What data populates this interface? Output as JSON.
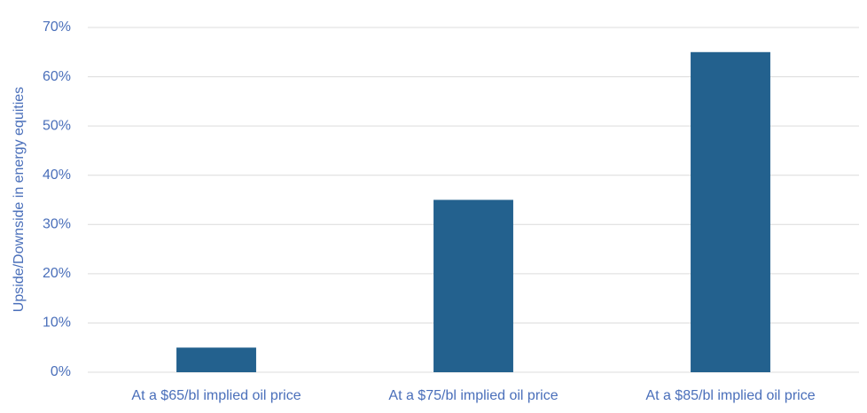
{
  "chart_data": {
    "type": "bar",
    "y_axis_label": "Upside/Downside in energy equities",
    "categories": [
      "At a $65/bl implied oil price",
      "At a $75/bl implied oil price",
      "At a $85/bl implied oil price"
    ],
    "values": [
      5,
      35,
      65
    ],
    "color": "#23618e",
    "ylim": [
      0,
      70
    ],
    "yticks": [
      {
        "value": 0,
        "label": "0%"
      },
      {
        "value": 10,
        "label": "10%"
      },
      {
        "value": 20,
        "label": "20%"
      },
      {
        "value": 30,
        "label": "30%"
      },
      {
        "value": 40,
        "label": "40%"
      },
      {
        "value": 50,
        "label": "50%"
      },
      {
        "value": 60,
        "label": "60%"
      },
      {
        "value": 70,
        "label": "70%"
      }
    ],
    "grid": true
  }
}
